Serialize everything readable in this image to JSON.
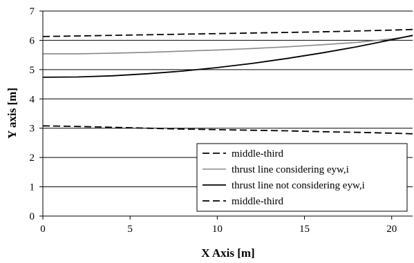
{
  "chart_data": {
    "type": "line",
    "title": "",
    "xlabel": "X Axis [m]",
    "ylabel": "Y axis [m]",
    "xlim": [
      0,
      21.2
    ],
    "ylim": [
      0,
      7
    ],
    "xticks": [
      0,
      5,
      10,
      15,
      20
    ],
    "yticks": [
      0,
      1,
      2,
      3,
      4,
      5,
      6,
      7
    ],
    "grid": "horizontal",
    "legend_position": "bottom-right",
    "series": [
      {
        "name": "middle-third",
        "color": "#000000",
        "dash": "dashed",
        "x": [
          0,
          2,
          4,
          6,
          8,
          10,
          12,
          14,
          16,
          18,
          20,
          21.2
        ],
        "y": [
          6.13,
          6.15,
          6.17,
          6.19,
          6.21,
          6.23,
          6.25,
          6.27,
          6.29,
          6.32,
          6.35,
          6.37
        ]
      },
      {
        "name": "thrust line considering eyw,i",
        "color": "#888888",
        "dash": "solid",
        "x": [
          0,
          2,
          4,
          6,
          8,
          10,
          12,
          14,
          16,
          18,
          20,
          21.2
        ],
        "y": [
          5.54,
          5.54,
          5.56,
          5.59,
          5.63,
          5.67,
          5.72,
          5.78,
          5.85,
          5.93,
          6.05,
          6.15
        ]
      },
      {
        "name": "thrust line not considering eyw,i",
        "color": "#000000",
        "dash": "solid",
        "x": [
          0,
          2,
          4,
          6,
          8,
          10,
          12,
          14,
          16,
          18,
          20,
          21.2
        ],
        "y": [
          4.74,
          4.75,
          4.79,
          4.86,
          4.95,
          5.07,
          5.21,
          5.38,
          5.57,
          5.78,
          6.02,
          6.17
        ]
      },
      {
        "name": "middle-third",
        "color": "#000000",
        "dash": "dashed",
        "x": [
          0,
          2,
          4,
          6,
          8,
          10,
          12,
          14,
          16,
          18,
          20,
          21.2
        ],
        "y": [
          3.08,
          3.06,
          3.03,
          3.0,
          2.97,
          2.95,
          2.93,
          2.91,
          2.88,
          2.86,
          2.83,
          2.81
        ]
      }
    ]
  }
}
